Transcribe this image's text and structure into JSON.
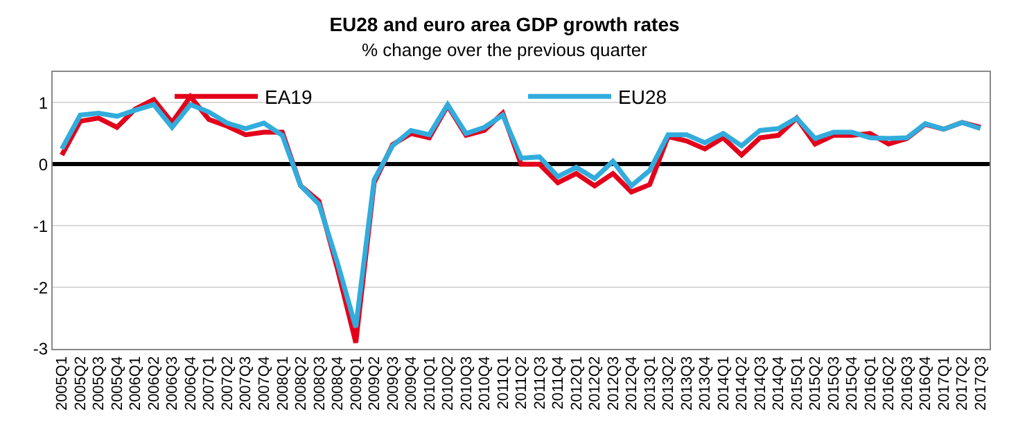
{
  "chart_data": {
    "type": "line",
    "title": "EU28 and euro area GDP growth rates",
    "subtitle": "% change over the previous quarter",
    "categories": [
      "2005Q1",
      "2005Q2",
      "2005Q3",
      "2005Q4",
      "2006Q1",
      "2006Q2",
      "2006Q3",
      "2006Q4",
      "2007Q1",
      "2007Q2",
      "2007Q3",
      "2007Q4",
      "2008Q1",
      "2008Q2",
      "2008Q3",
      "2008Q4",
      "2009Q1",
      "2009Q2",
      "2009Q3",
      "2009Q4",
      "2010Q1",
      "2010Q2",
      "2010Q3",
      "2010Q4",
      "2011Q1",
      "2011Q2",
      "2011Q3",
      "2011Q4",
      "2012Q1",
      "2012Q2",
      "2012Q3",
      "2012Q4",
      "2013Q1",
      "2013Q2",
      "2013Q3",
      "2013Q4",
      "2014Q1",
      "2014Q2",
      "2014Q3",
      "2014Q4",
      "2015Q1",
      "2015Q2",
      "2015Q3",
      "2015Q4",
      "2016Q1",
      "2016Q2",
      "2016Q3",
      "2016Q4",
      "2017Q1",
      "2017Q2",
      "2017Q3"
    ],
    "series": [
      {
        "name": "EA19",
        "color": "#e3001b",
        "values": [
          0.15,
          0.7,
          0.75,
          0.6,
          0.9,
          1.05,
          0.68,
          1.1,
          0.73,
          0.62,
          0.48,
          0.52,
          0.52,
          -0.35,
          -0.6,
          -1.7,
          -2.9,
          -0.3,
          0.32,
          0.5,
          0.43,
          0.95,
          0.47,
          0.55,
          0.83,
          0.0,
          0.0,
          -0.3,
          -0.15,
          -0.35,
          -0.15,
          -0.45,
          -0.33,
          0.45,
          0.38,
          0.25,
          0.43,
          0.15,
          0.43,
          0.47,
          0.75,
          0.33,
          0.47,
          0.47,
          0.5,
          0.33,
          0.42,
          0.65,
          0.57,
          0.68,
          0.6
        ]
      },
      {
        "name": "EU28",
        "color": "#31acdc",
        "values": [
          0.25,
          0.8,
          0.83,
          0.78,
          0.88,
          0.97,
          0.6,
          0.97,
          0.85,
          0.67,
          0.58,
          0.67,
          0.47,
          -0.35,
          -0.65,
          -1.6,
          -2.65,
          -0.25,
          0.3,
          0.55,
          0.48,
          0.97,
          0.5,
          0.6,
          0.8,
          0.1,
          0.12,
          -0.2,
          -0.05,
          -0.23,
          0.05,
          -0.35,
          -0.1,
          0.48,
          0.48,
          0.35,
          0.5,
          0.3,
          0.55,
          0.58,
          0.75,
          0.42,
          0.52,
          0.52,
          0.43,
          0.42,
          0.43,
          0.66,
          0.57,
          0.68,
          0.58
        ]
      }
    ],
    "ylim": [
      -3,
      1.5
    ],
    "yticks": [
      -3,
      -2,
      -1,
      0,
      1
    ],
    "grid": "y",
    "legend": "top",
    "marker": "none",
    "line_style": "solid"
  }
}
